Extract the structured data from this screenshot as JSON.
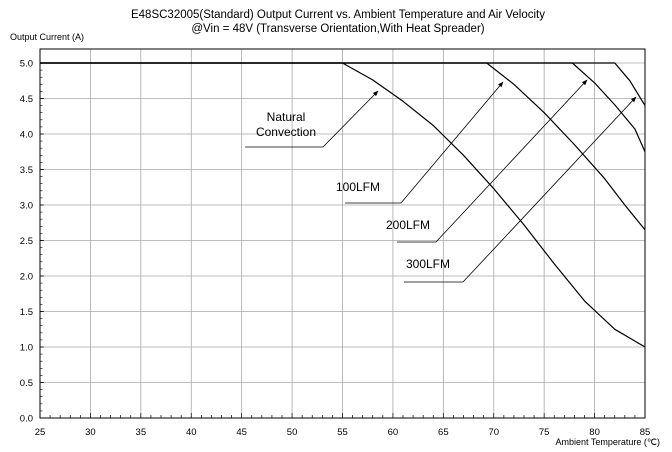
{
  "chart_data": {
    "type": "line",
    "title": "E48SC32005(Standard)  Output Current vs. Ambient Temperature and Air Velocity",
    "subtitle": "@Vin = 48V (Transverse Orientation,With Heat Spreader)",
    "ylabel": "Output Current (A)",
    "xlabel": "Ambient Temperature (℃)",
    "xlim": [
      25,
      85
    ],
    "ylim": [
      0,
      5.0
    ],
    "xticks": [
      25,
      30,
      35,
      40,
      45,
      50,
      55,
      60,
      65,
      70,
      75,
      80,
      85
    ],
    "yticks": [
      "0.0",
      "0.5",
      "1.0",
      "1.5",
      "2.0",
      "2.5",
      "3.0",
      "3.5",
      "4.0",
      "4.5",
      "5.0"
    ],
    "grid": true,
    "series": [
      {
        "name": "Natural Convection",
        "label_lines": [
          "Natural",
          "Convection"
        ],
        "points": [
          [
            25,
            5.0
          ],
          [
            55,
            5.0
          ],
          [
            58,
            4.76
          ],
          [
            61,
            4.46
          ],
          [
            64,
            4.12
          ],
          [
            67,
            3.7
          ],
          [
            70,
            3.23
          ],
          [
            73,
            2.72
          ],
          [
            76,
            2.17
          ],
          [
            79,
            1.65
          ],
          [
            82,
            1.25
          ],
          [
            85,
            1.0
          ]
        ]
      },
      {
        "name": "100LFM",
        "label_lines": [
          "100LFM"
        ],
        "points": [
          [
            25,
            5.0
          ],
          [
            69.3,
            5.0
          ],
          [
            72,
            4.7
          ],
          [
            75,
            4.3
          ],
          [
            78,
            3.85
          ],
          [
            81,
            3.37
          ],
          [
            83,
            3.0
          ],
          [
            85,
            2.65
          ]
        ]
      },
      {
        "name": "200LFM",
        "label_lines": [
          "200LFM"
        ],
        "points": [
          [
            25,
            5.0
          ],
          [
            77.8,
            5.0
          ],
          [
            80,
            4.72
          ],
          [
            82,
            4.41
          ],
          [
            84,
            4.07
          ],
          [
            85,
            3.75
          ]
        ]
      },
      {
        "name": "300LFM",
        "label_lines": [
          "300LFM"
        ],
        "points": [
          [
            25,
            5.0
          ],
          [
            82,
            5.0
          ],
          [
            83.5,
            4.75
          ],
          [
            85,
            4.4
          ]
        ]
      }
    ]
  }
}
